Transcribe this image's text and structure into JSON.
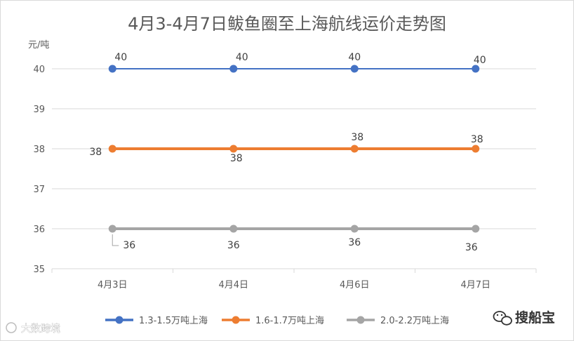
{
  "chart_data": {
    "type": "line",
    "title": "4月3-4月7日鲅鱼圈至上海航线运价走势图",
    "ylabel": "元/吨",
    "xlabel": "",
    "categories": [
      "4月3日",
      "4月4日",
      "4月6日",
      "4月7日"
    ],
    "ylim": [
      35,
      40
    ],
    "yticks": [
      "35",
      "36",
      "37",
      "38",
      "39",
      "40"
    ],
    "grid": true,
    "legend": "bottom",
    "series": [
      {
        "name": "1.3-1.5万吨上海",
        "values": [
          40,
          40,
          40,
          40
        ],
        "labels": [
          "40",
          "40",
          "40",
          "40"
        ],
        "color": "#4472c4"
      },
      {
        "name": "1.6-1.7万吨上海",
        "values": [
          38,
          38,
          38,
          38
        ],
        "labels": [
          "38",
          "38",
          "38",
          "38"
        ],
        "color": "#ed7d31"
      },
      {
        "name": "2.0-2.2万吨上海",
        "values": [
          36,
          36,
          36,
          36
        ],
        "labels": [
          "36",
          "36",
          "36",
          "36"
        ],
        "color": "#a5a5a5"
      }
    ]
  },
  "watermark": {
    "text": "大数跨境"
  },
  "brand": {
    "text": "搜船宝",
    "icon": "wechat-icon"
  }
}
